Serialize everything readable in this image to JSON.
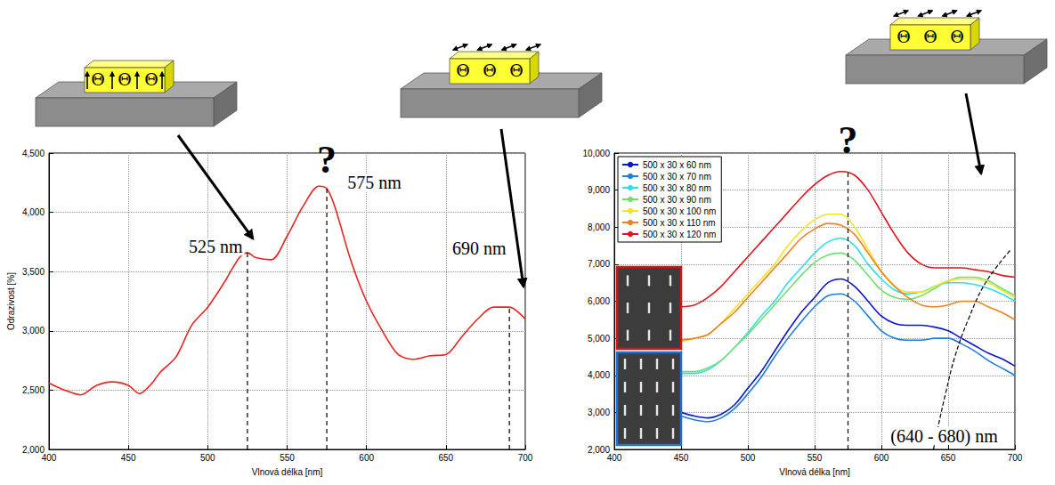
{
  "chart_data": [
    {
      "type": "line",
      "x_label": "Vlnová délka [nm]",
      "y_label": "Odrazivost [%]",
      "xlim": [
        400,
        700
      ],
      "xticks": [
        400,
        450,
        500,
        550,
        600,
        650,
        700
      ],
      "ylim": [
        2000,
        4500
      ],
      "yticks": [
        2000,
        2500,
        3000,
        3500,
        4000,
        4500
      ],
      "grid": true,
      "color": "#e8241c",
      "x": [
        400,
        410,
        420,
        430,
        440,
        450,
        457,
        465,
        470,
        480,
        490,
        500,
        510,
        520,
        525,
        530,
        540,
        550,
        560,
        570,
        575,
        580,
        590,
        600,
        610,
        620,
        630,
        640,
        650,
        660,
        670,
        680,
        690,
        700
      ],
      "values": [
        2560,
        2500,
        2460,
        2540,
        2570,
        2540,
        2470,
        2560,
        2650,
        2780,
        3050,
        3200,
        3400,
        3620,
        3660,
        3620,
        3600,
        3800,
        4050,
        4220,
        4200,
        4050,
        3600,
        3250,
        3000,
        2800,
        2760,
        2790,
        2800,
        2950,
        3100,
        3200,
        3200,
        3100
      ],
      "dashed_lines": [
        {
          "x": 525,
          "y": 3660
        },
        {
          "x": 575,
          "y": 4220
        },
        {
          "x": 690,
          "y": 3200
        }
      ],
      "annotations": [
        {
          "text": "525 nm",
          "x": 505,
          "y": 3710
        },
        {
          "text": "?",
          "x": 575,
          "y": 4440
        },
        {
          "text": "575 nm",
          "x": 605,
          "y": 4250
        },
        {
          "text": "690 nm",
          "x": 671,
          "y": 3700
        }
      ]
    },
    {
      "type": "line",
      "x_label": "Vlnová délka [nm]",
      "xlim": [
        400,
        700
      ],
      "xticks": [
        400,
        450,
        500,
        550,
        600,
        650,
        700
      ],
      "ylim": [
        2000,
        10000
      ],
      "yticks": [
        2000,
        3000,
        4000,
        5000,
        6000,
        7000,
        8000,
        9000,
        10000
      ],
      "grid": true,
      "legend": "top-left",
      "x": [
        450,
        460,
        470,
        480,
        490,
        500,
        510,
        520,
        530,
        540,
        550,
        560,
        570,
        580,
        590,
        600,
        610,
        620,
        630,
        640,
        650,
        660,
        670,
        680,
        690,
        700
      ],
      "series": [
        {
          "name": "500 x 30 x 60 nm",
          "color": "#0a14d2",
          "values": [
            3000,
            2900,
            2850,
            2950,
            3200,
            3650,
            4100,
            4650,
            5200,
            5700,
            6100,
            6500,
            6600,
            6400,
            6000,
            5600,
            5400,
            5350,
            5350,
            5300,
            5200,
            5000,
            4800,
            4600,
            4450,
            4250
          ]
        },
        {
          "name": "500 x 30 x 70 nm",
          "color": "#1e7ee0",
          "values": [
            2900,
            2800,
            2750,
            2850,
            3100,
            3500,
            3950,
            4500,
            5000,
            5450,
            5850,
            6150,
            6200,
            6000,
            5600,
            5200,
            5000,
            4950,
            4950,
            5000,
            5000,
            4850,
            4650,
            4400,
            4200,
            4000
          ]
        },
        {
          "name": "500 x 30 x 80 nm",
          "color": "#2ee0e6",
          "values": [
            4050,
            4050,
            4150,
            4400,
            4750,
            5150,
            5600,
            6000,
            6500,
            6900,
            7300,
            7600,
            7700,
            7500,
            7000,
            6600,
            6300,
            6200,
            6250,
            6400,
            6500,
            6500,
            6450,
            6350,
            6200,
            6000
          ]
        },
        {
          "name": "500 x 30 x 90 nm",
          "color": "#6ee06e",
          "values": [
            4100,
            4100,
            4200,
            4400,
            4750,
            5100,
            5500,
            5900,
            6300,
            6700,
            7050,
            7250,
            7300,
            7100,
            6700,
            6300,
            6100,
            6050,
            6150,
            6350,
            6550,
            6650,
            6650,
            6550,
            6350,
            6150
          ]
        },
        {
          "name": "500 x 30 x 100 nm",
          "color": "#f2e22a",
          "values": [
            4900,
            5000,
            5100,
            5400,
            5800,
            6200,
            6600,
            7000,
            7500,
            7900,
            8200,
            8350,
            8350,
            8000,
            7400,
            6800,
            6400,
            6250,
            6250,
            6400,
            6550,
            6600,
            6600,
            6500,
            6300,
            6100
          ]
        },
        {
          "name": "500 x 30 x 110 nm",
          "color": "#f0821e",
          "values": [
            4950,
            5000,
            5100,
            5400,
            5700,
            6100,
            6500,
            6900,
            7300,
            7700,
            7950,
            8100,
            8050,
            7800,
            7300,
            6800,
            6400,
            6100,
            5900,
            5850,
            5900,
            6000,
            6000,
            5850,
            5700,
            5500
          ]
        },
        {
          "name": "500 x 30 x 120 nm",
          "color": "#e0141a",
          "values": [
            5850,
            5900,
            6100,
            6400,
            6800,
            7200,
            7600,
            8000,
            8400,
            8800,
            9150,
            9400,
            9500,
            9400,
            9000,
            8400,
            7800,
            7300,
            7000,
            6900,
            6900,
            6900,
            6850,
            6800,
            6700,
            6650
          ]
        }
      ],
      "guide_curve": {
        "x": [
          639,
          643,
          648,
          655,
          665,
          678,
          697
        ],
        "y": [
          2000,
          2700,
          3500,
          4500,
          5500,
          6500,
          7400
        ]
      },
      "dashed_lines": [
        {
          "x": 575,
          "y": 9500
        }
      ],
      "annotations": [
        {
          "text": "?",
          "x": 575,
          "y": 10350
        },
        {
          "text": "(640 - 680) nm",
          "x": 647,
          "y": 2360
        }
      ]
    }
  ],
  "diagrams": [
    {
      "label": "ΘΘΘ",
      "field": "vertical"
    },
    {
      "label": "ΘΘΘ",
      "field": "horizontal"
    },
    {
      "label": "ΘΘΘ",
      "field": "horizontal"
    }
  ]
}
